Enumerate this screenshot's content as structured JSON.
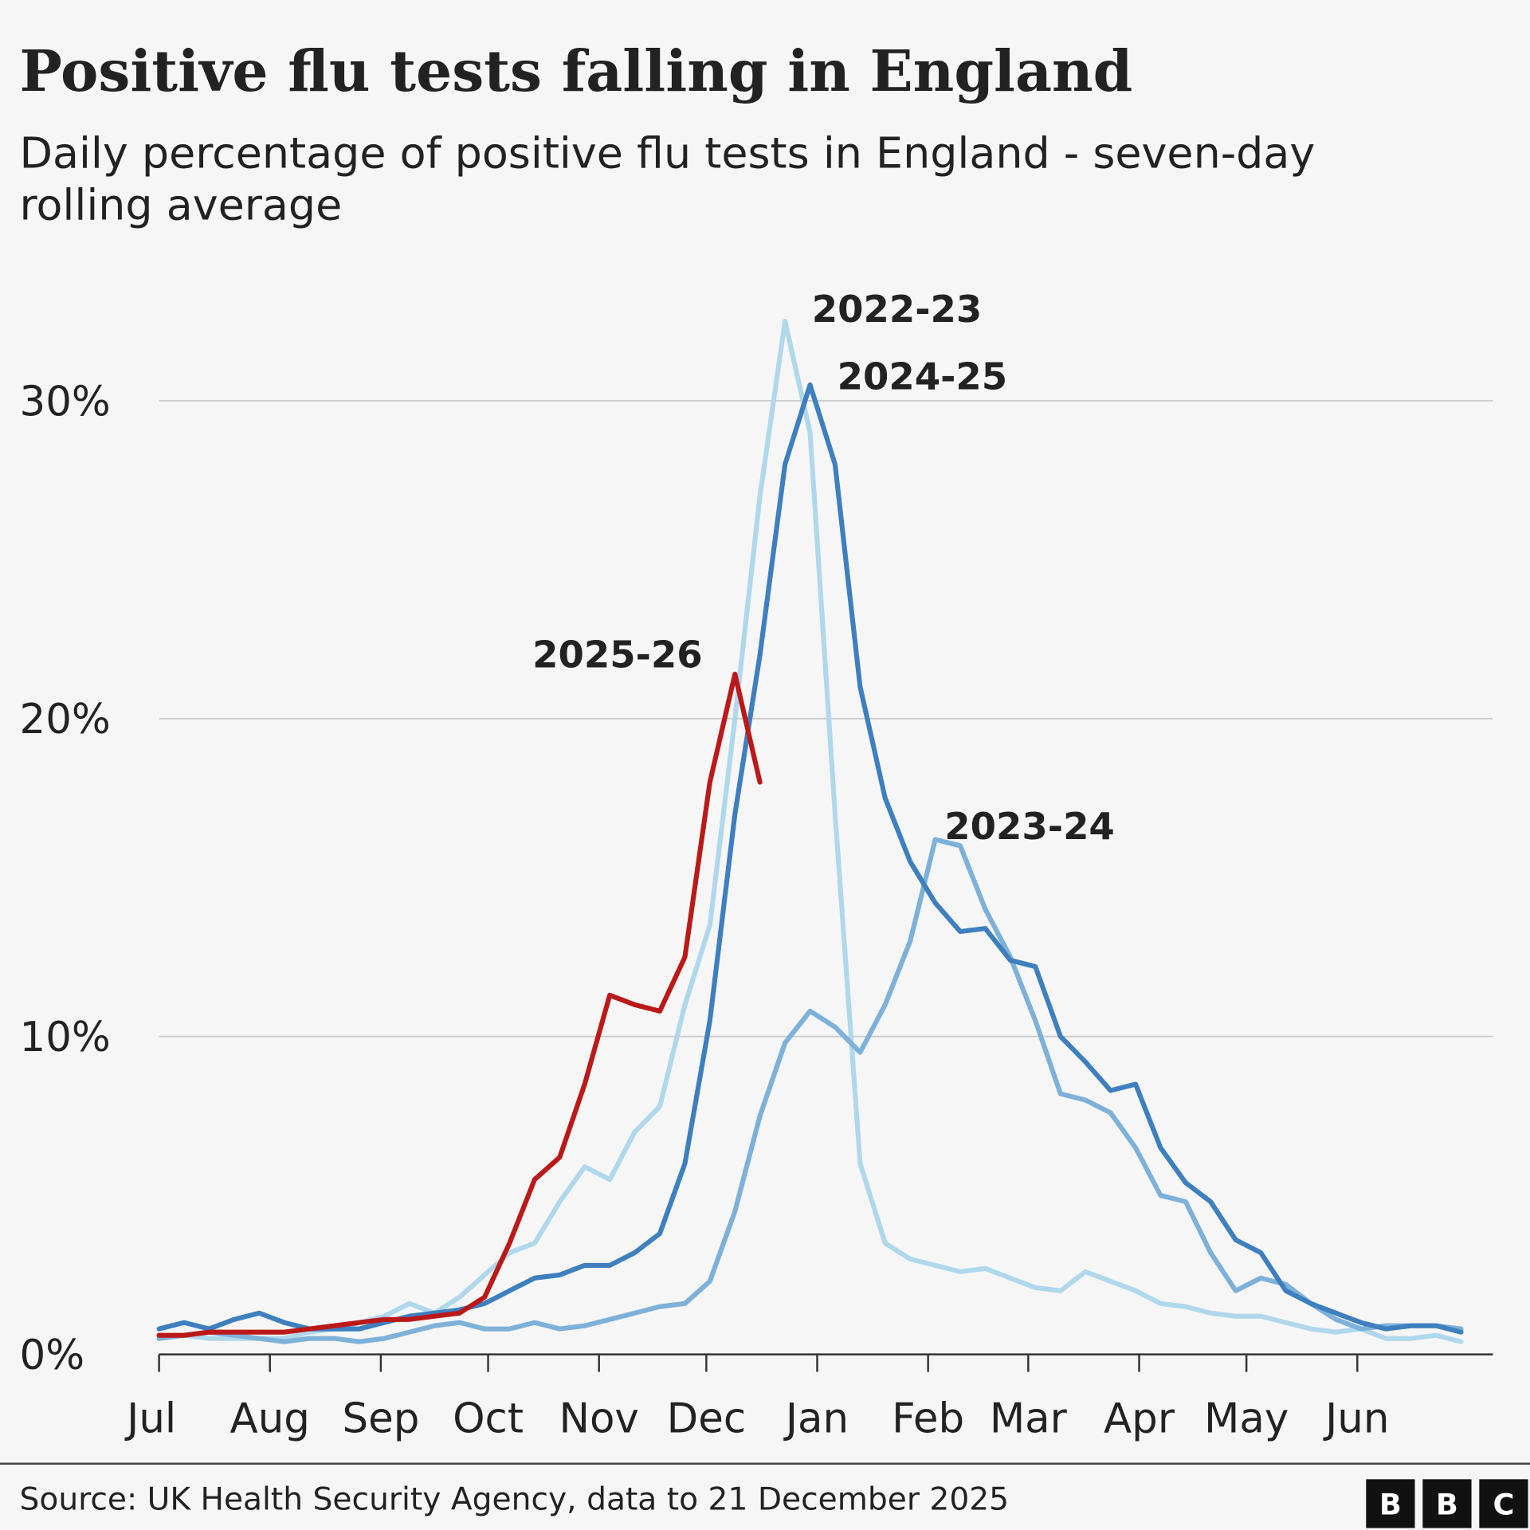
{
  "chart_data": {
    "type": "line",
    "title": "Positive flu tests falling in England",
    "subtitle": [
      "Daily percentage of positive flu tests in England - seven-day",
      "rolling average"
    ],
    "source": "Source: UK Health Security Agency, data to 21 December 2025",
    "logo": [
      "B",
      "B",
      "C"
    ],
    "x": [
      0,
      7,
      14,
      21,
      28,
      35,
      42,
      49,
      56,
      63,
      70,
      77,
      84,
      91,
      98,
      105,
      112,
      119,
      126,
      133,
      140,
      147,
      154,
      161,
      168,
      175,
      182,
      189,
      196,
      203,
      210,
      217,
      224,
      231,
      238,
      245,
      252,
      259,
      266,
      273,
      280,
      287,
      294,
      301,
      308,
      315,
      322,
      329,
      336,
      343,
      350,
      357,
      364
    ],
    "xlim": [
      0,
      365
    ],
    "xticks": [
      {
        "value": 0,
        "label": "Jul"
      },
      {
        "value": 31,
        "label": "Aug"
      },
      {
        "value": 62,
        "label": "Sep"
      },
      {
        "value": 92,
        "label": "Oct"
      },
      {
        "value": 123,
        "label": "Nov"
      },
      {
        "value": 153,
        "label": "Dec"
      },
      {
        "value": 184,
        "label": "Jan"
      },
      {
        "value": 215,
        "label": "Feb"
      },
      {
        "value": 243,
        "label": "Mar"
      },
      {
        "value": 274,
        "label": "Apr"
      },
      {
        "value": 304,
        "label": "May"
      },
      {
        "value": 335,
        "label": "Jun"
      }
    ],
    "ylim": [
      0,
      33
    ],
    "yticks": [
      {
        "value": 0,
        "label": "0%"
      },
      {
        "value": 10,
        "label": "10%"
      },
      {
        "value": 20,
        "label": "20%"
      },
      {
        "value": 30,
        "label": "30%"
      }
    ],
    "grid": true,
    "series": [
      {
        "name": "2022-23",
        "color": "#b0d8ec",
        "values": [
          0.5,
          0.6,
          0.5,
          0.5,
          0.5,
          0.5,
          0.7,
          0.8,
          1.0,
          1.2,
          1.6,
          1.3,
          1.8,
          2.5,
          3.2,
          3.5,
          4.8,
          5.9,
          5.5,
          7.0,
          7.8,
          11,
          13.5,
          20,
          27,
          32.5,
          29,
          17,
          6,
          3.5,
          3.0,
          2.8,
          2.6,
          2.7,
          2.4,
          2.1,
          2.0,
          2.6,
          2.3,
          2.0,
          1.6,
          1.5,
          1.3,
          1.2,
          1.2,
          1.0,
          0.8,
          0.7,
          0.8,
          0.5,
          0.5,
          0.6,
          0.4
        ]
      },
      {
        "name": "2023-24",
        "color": "#7db1da",
        "values": [
          0.5,
          0.6,
          0.7,
          0.6,
          0.5,
          0.4,
          0.5,
          0.5,
          0.4,
          0.5,
          0.7,
          0.9,
          1.0,
          0.8,
          0.8,
          1.0,
          0.8,
          0.9,
          1.1,
          1.3,
          1.5,
          1.6,
          2.3,
          4.5,
          7.5,
          9.8,
          10.8,
          10.3,
          9.5,
          11,
          13,
          16.2,
          16,
          14,
          12.5,
          10.5,
          8.2,
          8.0,
          7.6,
          6.5,
          5.0,
          4.8,
          3.2,
          2.0,
          2.4,
          2.2,
          1.6,
          1.1,
          0.8,
          0.9,
          0.9,
          0.9,
          0.8
        ]
      },
      {
        "name": "2024-25",
        "color": "#3e7fbf",
        "values": [
          0.8,
          1.0,
          0.8,
          1.1,
          1.3,
          1.0,
          0.8,
          0.8,
          0.8,
          1.0,
          1.2,
          1.3,
          1.4,
          1.6,
          2.0,
          2.4,
          2.5,
          2.8,
          2.8,
          3.2,
          3.8,
          6,
          10.5,
          17,
          22,
          28,
          30.5,
          28,
          21,
          17.5,
          15.5,
          14.2,
          13.3,
          13.4,
          12.4,
          12.2,
          10,
          9.2,
          8.3,
          8.5,
          6.5,
          5.4,
          4.8,
          3.6,
          3.2,
          2.0,
          1.6,
          1.3,
          1.0,
          0.8,
          0.9,
          0.9,
          0.7
        ]
      },
      {
        "name": "2025-26",
        "color": "#bb1919",
        "values": [
          0.6,
          0.6,
          0.7,
          0.7,
          0.7,
          0.7,
          0.8,
          0.9,
          1.0,
          1.1,
          1.1,
          1.2,
          1.3,
          1.8,
          3.5,
          5.5,
          6.2,
          8.5,
          11.3,
          11.0,
          10.8,
          12.5,
          18,
          21.4,
          18,
          null,
          null,
          null,
          null,
          null,
          null,
          null,
          null,
          null,
          null,
          null,
          null,
          null,
          null,
          null,
          null,
          null,
          null,
          null,
          null,
          null,
          null,
          null,
          null,
          null,
          null,
          null,
          null
        ]
      }
    ]
  }
}
